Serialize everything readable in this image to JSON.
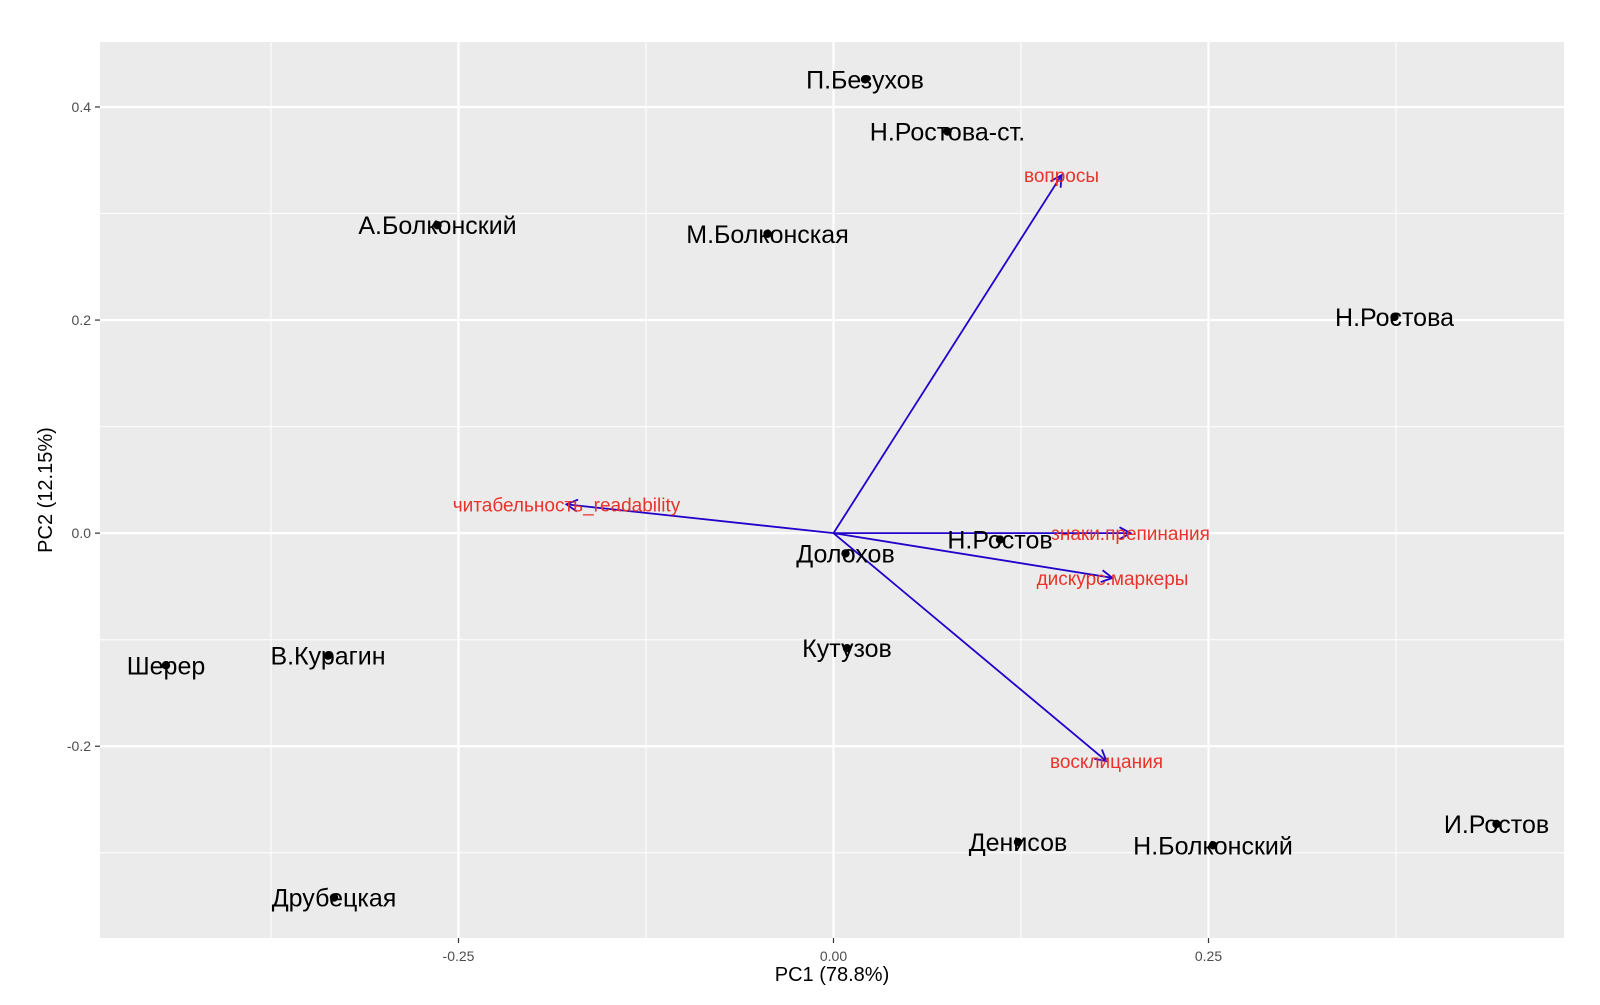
{
  "chart_data": {
    "type": "scatter",
    "subtype": "pca-biplot",
    "title": "",
    "xlabel": "PC1 (78.8%)",
    "ylabel": "PC2 (12.15%)",
    "xlim": [
      -0.489,
      0.487
    ],
    "ylim": [
      -0.38,
      0.461
    ],
    "x_ticks": [
      {
        "value": -0.25,
        "label": "-0.25"
      },
      {
        "value": 0.0,
        "label": "0.00"
      },
      {
        "value": 0.25,
        "label": "0.25"
      }
    ],
    "y_ticks": [
      {
        "value": -0.2,
        "label": "-0.2"
      },
      {
        "value": 0.0,
        "label": "0.0"
      },
      {
        "value": 0.2,
        "label": "0.2"
      },
      {
        "value": 0.4,
        "label": "0.4"
      }
    ],
    "grid": true,
    "panel_background": "#ebebeb",
    "grid_color": "#ffffff",
    "point_color": "#000000",
    "arrow_color": "#2200cc",
    "arrow_label_color": "#e8332b",
    "points": [
      {
        "label": "П.Безухов",
        "x": 0.021,
        "y": 0.426
      },
      {
        "label": "Н.Ростова-ст.",
        "x": 0.076,
        "y": 0.377
      },
      {
        "label": "А.Болконский",
        "x": -0.264,
        "y": 0.289
      },
      {
        "label": "М.Болконская",
        "x": -0.044,
        "y": 0.281
      },
      {
        "label": "Н.Ростова",
        "x": 0.374,
        "y": 0.203
      },
      {
        "label": "Н.Ростов",
        "x": 0.111,
        "y": -0.006
      },
      {
        "label": "Долохов",
        "x": 0.008,
        "y": -0.019
      },
      {
        "label": "Кутузов",
        "x": 0.009,
        "y": -0.108
      },
      {
        "label": "Шерер",
        "x": -0.445,
        "y": -0.124
      },
      {
        "label": "В.Курагин",
        "x": -0.337,
        "y": -0.115
      },
      {
        "label": "Денисов",
        "x": 0.123,
        "y": -0.29
      },
      {
        "label": "Н.Болконский",
        "x": 0.253,
        "y": -0.293
      },
      {
        "label": "И.Ростов",
        "x": 0.442,
        "y": -0.273
      },
      {
        "label": "Друбецкая",
        "x": -0.333,
        "y": -0.342
      }
    ],
    "loadings": [
      {
        "label": "вопросы",
        "x": 0.152,
        "y": 0.336
      },
      {
        "label": "читабельность_readability",
        "x": -0.178,
        "y": 0.027
      },
      {
        "label": "знаки.препинания",
        "x": 0.198,
        "y": 0.0
      },
      {
        "label": "дискурс.маркеры",
        "x": 0.186,
        "y": -0.042
      },
      {
        "label": "восклицания",
        "x": 0.182,
        "y": -0.214
      }
    ]
  }
}
